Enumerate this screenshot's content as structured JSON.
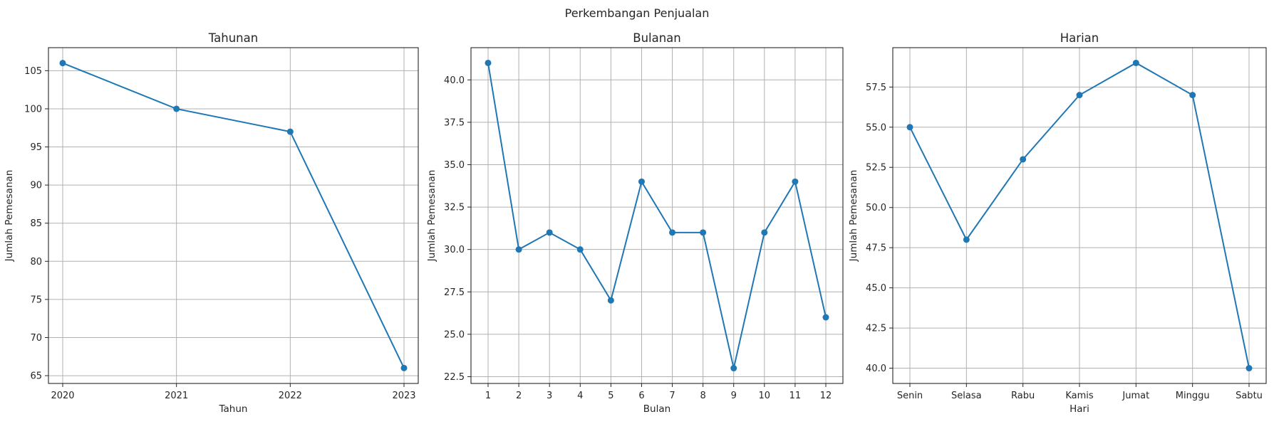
{
  "figure": {
    "title": "Perkembangan Penjualan"
  },
  "chart_data": [
    {
      "type": "line",
      "title": "Tahunan",
      "xlabel": "Tahun",
      "ylabel": "Jumlah Pemesanan",
      "categories": [
        "2020",
        "2021",
        "2022",
        "2023"
      ],
      "values": [
        106,
        100,
        97,
        66
      ],
      "ylim": [
        63.98,
        108.02
      ],
      "yticks": [
        65,
        70,
        75,
        80,
        85,
        90,
        95,
        100,
        105
      ],
      "ytick_labels": [
        "65",
        "70",
        "75",
        "80",
        "85",
        "90",
        "95",
        "100",
        "105"
      ],
      "grid": true,
      "color": "#1f77b4"
    },
    {
      "type": "line",
      "title": "Bulanan",
      "xlabel": "Bulan",
      "ylabel": "Jumlah Pemesanan",
      "categories": [
        "1",
        "2",
        "3",
        "4",
        "5",
        "6",
        "7",
        "8",
        "9",
        "10",
        "11",
        "12"
      ],
      "values": [
        41,
        30,
        31,
        30,
        27,
        34,
        31,
        31,
        23,
        31,
        34,
        26
      ],
      "ylim": [
        22.1,
        41.9
      ],
      "yticks": [
        22.5,
        25,
        27.5,
        30,
        32.5,
        35,
        37.5,
        40
      ],
      "ytick_labels": [
        "22.5",
        "25.0",
        "27.5",
        "30.0",
        "32.5",
        "35.0",
        "37.5",
        "40.0"
      ],
      "grid": true,
      "color": "#1f77b4"
    },
    {
      "type": "line",
      "title": "Harian",
      "xlabel": "Hari",
      "ylabel": "Jumlah Pemesanan",
      "categories": [
        "Senin",
        "Selasa",
        "Rabu",
        "Kamis",
        "Jumat",
        "Minggu",
        "Sabtu"
      ],
      "values": [
        55,
        48,
        53,
        57,
        59,
        57,
        40
      ],
      "ylim": [
        39.05,
        59.95
      ],
      "yticks": [
        40,
        42.5,
        45,
        47.5,
        50,
        52.5,
        55,
        57.5
      ],
      "ytick_labels": [
        "40.0",
        "42.5",
        "45.0",
        "47.5",
        "50.0",
        "52.5",
        "55.0",
        "57.5"
      ],
      "grid": true,
      "color": "#1f77b4"
    }
  ]
}
